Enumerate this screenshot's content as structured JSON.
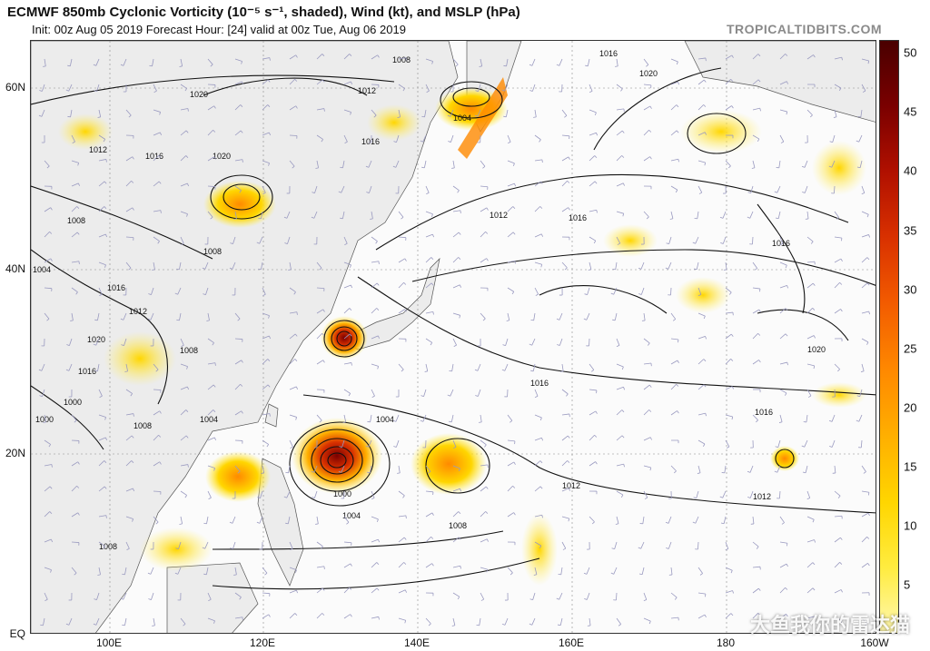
{
  "header": {
    "title": "ECMWF 850mb Cyclonic Vorticity (10⁻⁵ s⁻¹, shaded), Wind (kt), and MSLP (hPa)",
    "subtitle": "Init: 00z Aug 05 2019   Forecast Hour: [24]   valid at 00z Tue, Aug 06 2019",
    "brand": "TROPICALTIDBITS.COM"
  },
  "colorbar": {
    "ticks": [
      "50",
      "45",
      "40",
      "35",
      "30",
      "25",
      "20",
      "15",
      "10",
      "5"
    ],
    "colors": [
      "#fff8b0",
      "#ffec40",
      "#ffd600",
      "#ffb000",
      "#ff8a00",
      "#f25a00",
      "#d83000",
      "#b01000",
      "#7a0000",
      "#4a0000"
    ]
  },
  "axes": {
    "lat_labels": [
      "60N",
      "40N",
      "20N",
      "EQ"
    ],
    "lon_labels": [
      "100E",
      "120E",
      "140E",
      "160E",
      "180",
      "160W"
    ]
  },
  "isobar_labels": [
    "1008",
    "1012",
    "1016",
    "1004",
    "1020",
    "1016",
    "1020",
    "1020",
    "1012",
    "1016",
    "1008",
    "1004",
    "1016",
    "1012",
    "1020",
    "1016",
    "1008",
    "1000",
    "1008",
    "1016",
    "1000",
    "1004",
    "1008",
    "1012",
    "1016",
    "1008",
    "1004",
    "1000",
    "1004",
    "1008",
    "1012",
    "1012",
    "1016",
    "1016",
    "1020"
  ],
  "watermark": "大鱼我你的雷达猫"
}
